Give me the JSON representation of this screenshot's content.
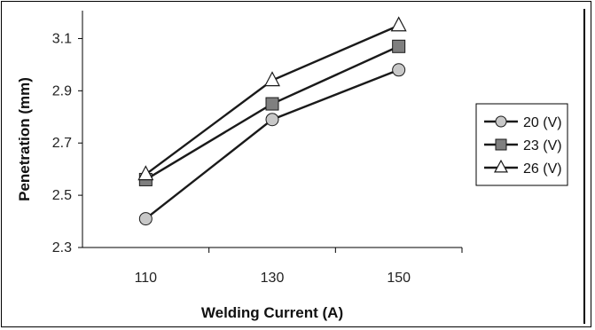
{
  "chart_data": {
    "type": "line",
    "title": "",
    "xlabel": "Welding Current (A)",
    "ylabel": "Penetration (mm)",
    "categories": [
      "110",
      "130",
      "150"
    ],
    "x": [
      110,
      130,
      150
    ],
    "xlim": [
      100,
      160
    ],
    "xticks": [
      110,
      130,
      150
    ],
    "ylim": [
      2.3,
      3.2
    ],
    "yticks": [
      "2.3",
      "2.5",
      "2.7",
      "2.9",
      "3.1"
    ],
    "grid": false,
    "legend_position": "right",
    "series": [
      {
        "name": "20 (V)",
        "marker": "circle",
        "values": [
          2.41,
          2.79,
          2.98
        ]
      },
      {
        "name": "23 (V)",
        "marker": "square",
        "values": [
          2.56,
          2.85,
          3.07
        ]
      },
      {
        "name": "26 (V)",
        "marker": "triangle",
        "values": [
          2.58,
          2.94,
          3.15
        ]
      }
    ],
    "colors": {
      "line": "#1a1a1a",
      "circle_fill": "#c8c8c8",
      "square_fill": "#7f7f7f",
      "triangle_fill": "#ffffff"
    }
  }
}
